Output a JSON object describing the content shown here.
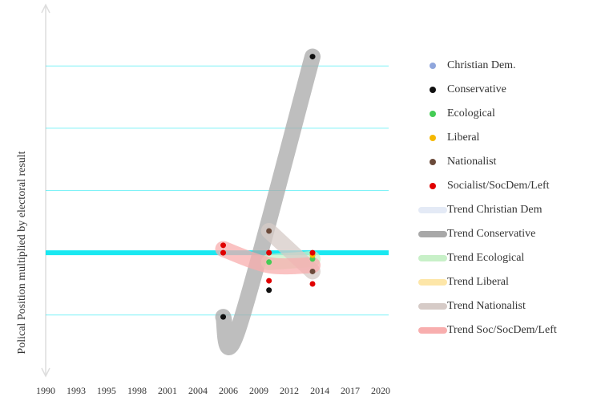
{
  "chart_data": {
    "type": "scatter",
    "y_label": "Polical Position multiplied by electoral result",
    "xlim": [
      1990,
      2020
    ],
    "xticks": [
      1990,
      {
        "value": 1992.73,
        "label": "1993"
      },
      {
        "value": 1995.45,
        "label": "1995"
      },
      {
        "value": 1998.18,
        "label": "1998"
      },
      {
        "value": 2000.91,
        "label": "2001"
      },
      {
        "value": 2003.64,
        "label": "2004"
      },
      {
        "value": 2006.36,
        "label": "2006"
      },
      {
        "value": 2009.09,
        "label": "2009"
      },
      {
        "value": 2011.82,
        "label": "2012"
      },
      {
        "value": 2014.55,
        "label": "2014"
      },
      {
        "value": 2017.27,
        "label": "2017"
      },
      2020
    ],
    "ylim": [
      -1.93,
      3.93
    ],
    "yticks": [
      -1,
      0,
      1,
      2,
      3
    ],
    "grid": true,
    "series": [
      {
        "name": "Christian Dem.",
        "color": "#8fa6dc",
        "x": [],
        "values": []
      },
      {
        "name": "Conservative",
        "color": "#111111",
        "x": [
          2005.9,
          2010.0,
          2013.9
        ],
        "values": [
          -1.03,
          -0.6,
          3.15
        ]
      },
      {
        "name": "Ecological",
        "color": "#44cc55",
        "x": [
          2010.0,
          2013.9
        ],
        "values": [
          -0.15,
          -0.1
        ]
      },
      {
        "name": "Liberal",
        "color": "#f5b800",
        "x": [
          2013.9
        ],
        "values": [
          -0.04
        ]
      },
      {
        "name": "Nationalist",
        "color": "#6b4a3a",
        "x": [
          2010.0,
          2013.9
        ],
        "values": [
          0.35,
          -0.3
        ]
      },
      {
        "name": "Socialist/SocDem/Left",
        "color": "#e00000",
        "x": [
          2005.9,
          2005.9,
          2010.0,
          2010.0,
          2013.9,
          2013.9
        ],
        "values": [
          0.12,
          0,
          0,
          -0.45,
          0,
          -0.5
        ]
      }
    ],
    "trends": [
      {
        "name": "Trend Christian Dem",
        "color": "#e4eaf6",
        "x": [],
        "values": []
      },
      {
        "name": "Trend Conservative",
        "color": "#a8a8a8",
        "x": [
          2005.9,
          2007.2,
          2013.9
        ],
        "values": [
          -1.03,
          -1.25,
          3.15
        ]
      },
      {
        "name": "Trend Ecological",
        "color": "#c8f0c8",
        "x": [
          2010.0,
          2013.9
        ],
        "values": [
          -0.15,
          -0.1
        ]
      },
      {
        "name": "Trend Liberal",
        "color": "#fde6a8",
        "x": [],
        "values": []
      },
      {
        "name": "Trend Nationalist",
        "color": "#d6cbc7",
        "x": [
          2010.0,
          2013.9
        ],
        "values": [
          0.35,
          -0.3
        ]
      },
      {
        "name": "Trend Soc/SocDem/Left",
        "color": "#f8aeae",
        "x": [
          2005.9,
          2010.0,
          2013.9
        ],
        "values": [
          0.06,
          -0.2,
          -0.2
        ]
      }
    ]
  }
}
